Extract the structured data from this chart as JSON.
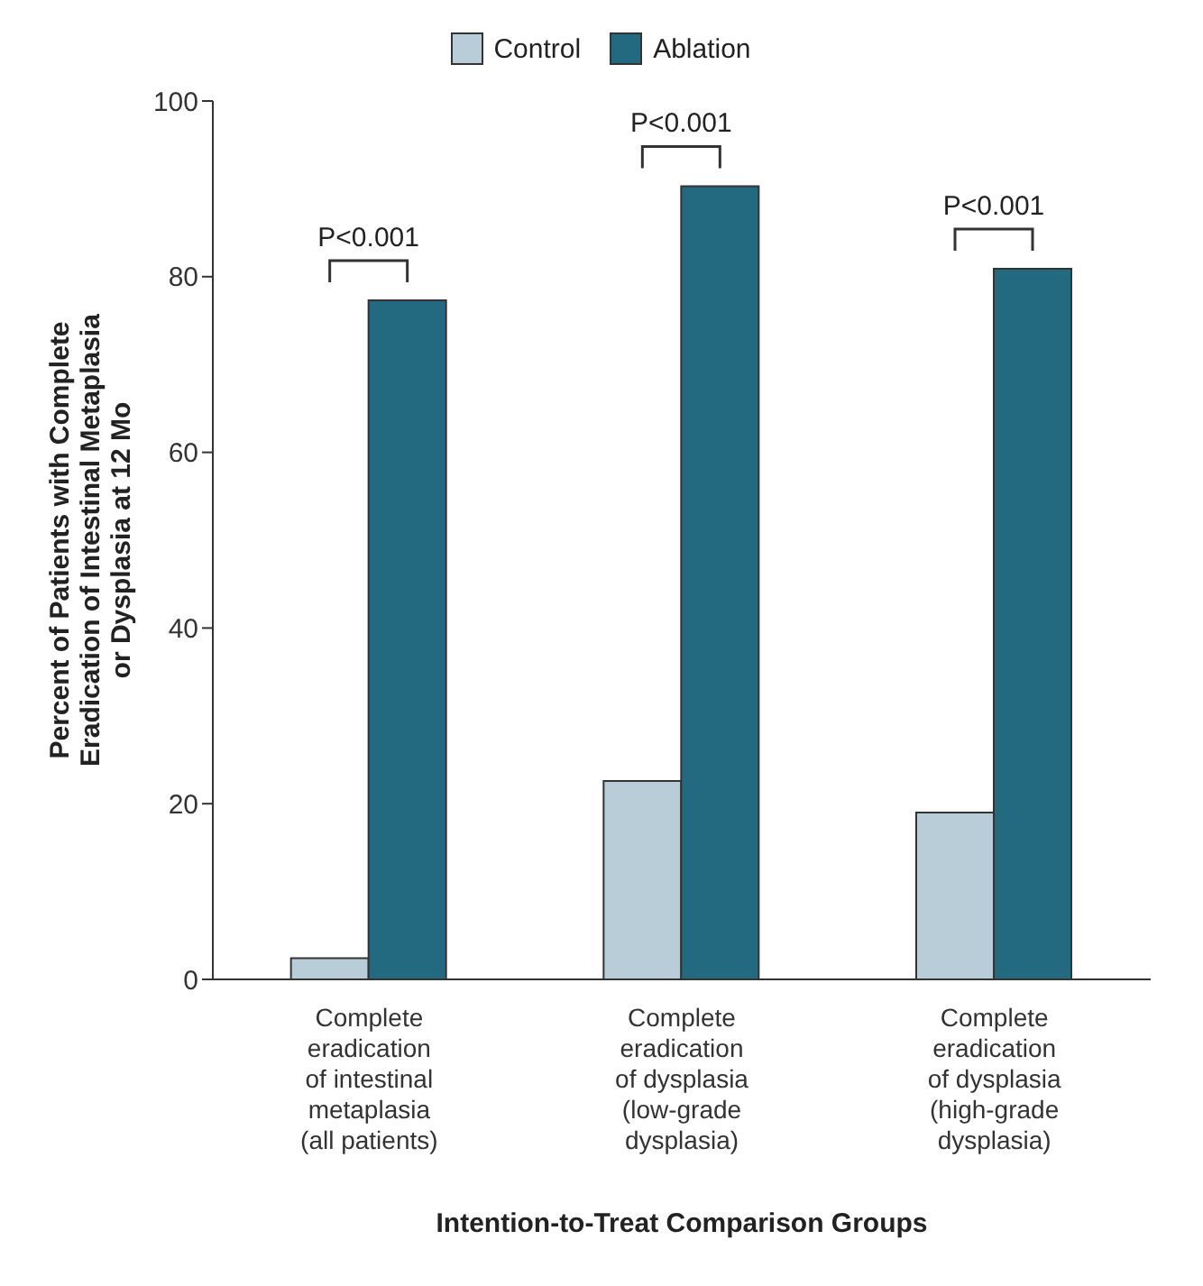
{
  "chart_data": {
    "type": "bar",
    "xlabel": "Intention-to-Treat Comparison Groups",
    "ylabel": "Percent of Patients with Complete\nEradication of Intestinal Metaplasia\nor Dysplasia at 12 Mo",
    "categories": [
      "Complete\neradication\nof intestinal\nmetaplasia\n(all patients)",
      "Complete\neradication\nof dysplasia\n(low-grade\ndysplasia)",
      "Complete\neradication\nof dysplasia\n(high-grade\ndysplasia)"
    ],
    "series": [
      {
        "name": "Control",
        "color": "#b9cdd9",
        "values": [
          2.4,
          22.6,
          19.0
        ]
      },
      {
        "name": "Ablation",
        "color": "#236a80",
        "values": [
          77.3,
          90.3,
          80.9
        ]
      }
    ],
    "ylim": [
      0,
      100
    ],
    "yticks": [
      0,
      20,
      40,
      60,
      80,
      100
    ],
    "legend": "top",
    "annotations": [
      "P<0.001",
      "P<0.001",
      "P<0.001"
    ]
  }
}
